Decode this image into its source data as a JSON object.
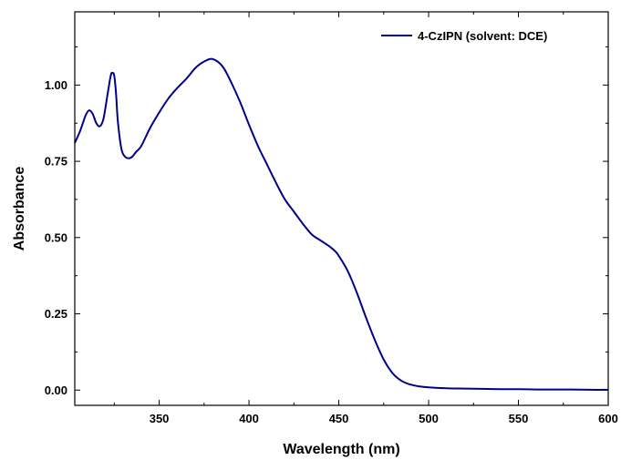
{
  "chart_data": {
    "type": "line",
    "xlabel": "Wavelength (nm)",
    "ylabel": "Absorbance",
    "xlim": [
      303,
      600
    ],
    "ylim": [
      -0.05,
      1.24
    ],
    "x_ticks": [
      350,
      400,
      450,
      500,
      550,
      600
    ],
    "x_tick_labels": [
      "350",
      "400",
      "450",
      "500",
      "550",
      "600"
    ],
    "y_ticks": [
      0.0,
      0.25,
      0.5,
      0.75,
      1.0
    ],
    "y_tick_labels": [
      "0.00",
      "0.25",
      "0.50",
      "0.75",
      "1.00"
    ],
    "grid": false,
    "legend_position": "top-right",
    "series": [
      {
        "name": "4-CzIPN (solvent: DCE)",
        "color": "#00008B",
        "x": [
          303,
          306,
          309,
          311,
          313,
          315,
          317,
          319,
          321,
          323,
          324,
          325,
          326,
          327,
          329,
          331,
          333,
          335,
          337,
          340,
          345,
          350,
          355,
          360,
          365,
          370,
          373,
          376,
          378,
          380,
          383,
          386,
          390,
          395,
          400,
          405,
          410,
          415,
          420,
          425,
          430,
          435,
          440,
          445,
          448,
          450,
          455,
          460,
          465,
          470,
          475,
          480,
          485,
          490,
          495,
          500,
          510,
          520,
          530,
          540,
          550,
          560,
          570,
          580,
          590,
          600
        ],
        "y": [
          0.81,
          0.85,
          0.9,
          0.917,
          0.905,
          0.875,
          0.865,
          0.89,
          0.96,
          1.03,
          1.04,
          1.03,
          0.97,
          0.88,
          0.79,
          0.765,
          0.76,
          0.765,
          0.78,
          0.8,
          0.86,
          0.91,
          0.955,
          0.99,
          1.02,
          1.055,
          1.07,
          1.08,
          1.085,
          1.085,
          1.075,
          1.055,
          1.01,
          0.945,
          0.87,
          0.8,
          0.74,
          0.68,
          0.625,
          0.585,
          0.545,
          0.51,
          0.49,
          0.47,
          0.455,
          0.44,
          0.39,
          0.32,
          0.24,
          0.165,
          0.1,
          0.055,
          0.03,
          0.018,
          0.012,
          0.009,
          0.006,
          0.005,
          0.004,
          0.003,
          0.003,
          0.002,
          0.002,
          0.002,
          0.001,
          0.001
        ]
      }
    ]
  }
}
